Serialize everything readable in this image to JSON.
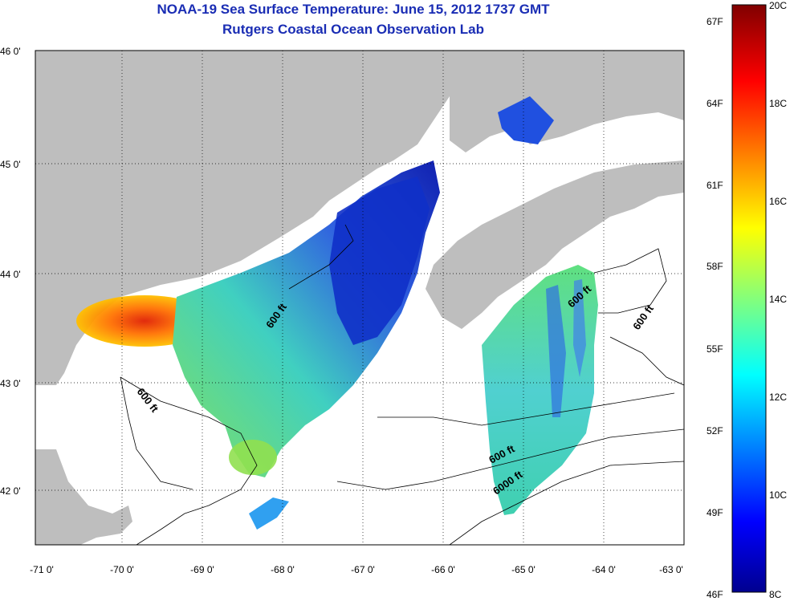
{
  "title": "NOAA-19 Sea Surface Temperature:  June 15, 2012 1737 GMT",
  "subtitle": "Rutgers Coastal Ocean Observation Lab",
  "lat_ticks": [
    "46 0'",
    "45 0'",
    "44 0'",
    "43 0'",
    "42 0'"
  ],
  "lon_ticks": [
    "-71 0'",
    "-70 0'",
    "-69 0'",
    "-68 0'",
    "-67 0'",
    "-66 0'",
    "-65 0'",
    "-64 0'",
    "-63 0'"
  ],
  "isobaths": [
    "600 ft",
    "600 ft",
    "600 ft",
    "600 ft",
    "600 ft",
    "6000 ft"
  ],
  "colorbar": {
    "fahrenheit": [
      "67F",
      "64F",
      "61F",
      "58F",
      "55F",
      "52F",
      "49F",
      "46F"
    ],
    "celsius": [
      "20C",
      "18C",
      "16C",
      "14C",
      "12C",
      "10C",
      "8C"
    ]
  },
  "colors": {
    "land": "#bebebe",
    "water": "#ffffff",
    "title": "#1a2db4"
  }
}
